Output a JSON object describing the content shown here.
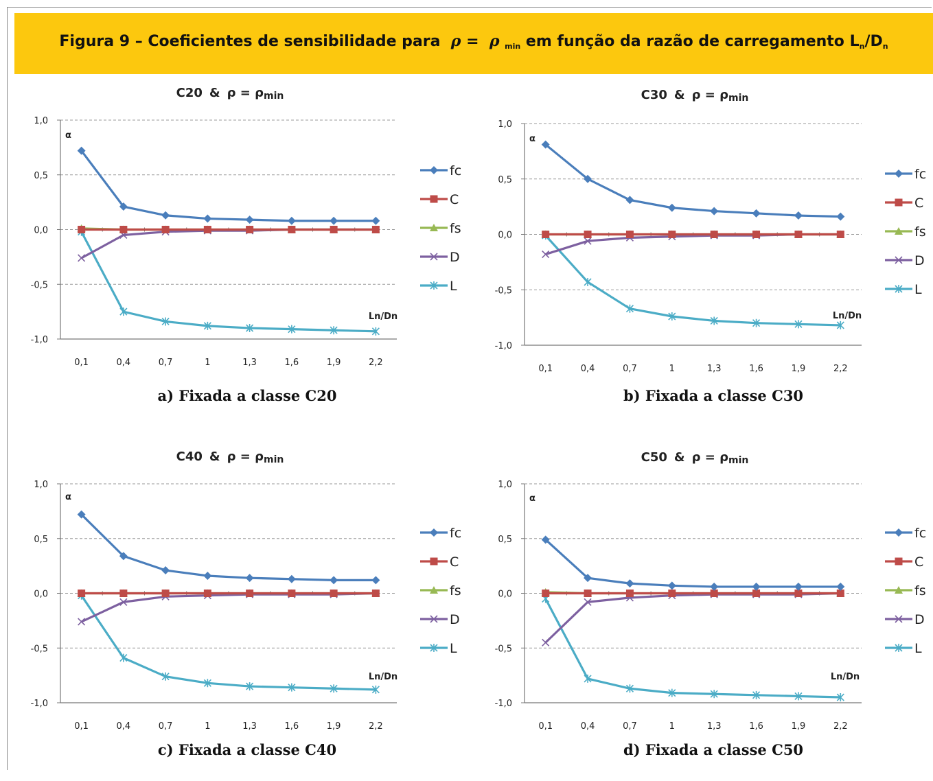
{
  "figure": {
    "title_prefix": "Figura 9 – Coeficientes de sensibilidade para",
    "rho": "ρ",
    "equals": "=",
    "rho2": "ρ",
    "min_sub": "min",
    "title_suffix": "em função da razão de carregamento L",
    "n_sub1": "n",
    "slash_d": "/D",
    "n_sub2": "n"
  },
  "chart_data": [
    {
      "type": "line",
      "title_class": "C20",
      "title_amp": "&",
      "title_rho": "ρ = ρ",
      "title_min": "min",
      "ylabel": "α",
      "xlabel": "Ln/Dn",
      "categories": [
        "0,1",
        "0,4",
        "0,7",
        "1",
        "1,3",
        "1,6",
        "1,9",
        "2,2"
      ],
      "ylim": [
        -1.0,
        1.0
      ],
      "yticks": [
        1.0,
        0.5,
        0.0,
        -0.5,
        -1.0
      ],
      "ytick_labels": [
        "1,0",
        "0,5",
        "0,0",
        "-0,5",
        "-1,0"
      ],
      "series": [
        {
          "name": "fc",
          "values": [
            0.72,
            0.21,
            0.13,
            0.1,
            0.09,
            0.08,
            0.08,
            0.08
          ]
        },
        {
          "name": "C",
          "values": [
            0.0,
            0.0,
            0.0,
            0.0,
            0.0,
            0.0,
            0.0,
            0.0
          ]
        },
        {
          "name": "fs",
          "values": [
            0.01,
            0.0,
            0.0,
            0.0,
            0.0,
            0.0,
            0.0,
            0.0
          ]
        },
        {
          "name": "D",
          "values": [
            -0.26,
            -0.05,
            -0.02,
            -0.01,
            -0.01,
            0.0,
            0.0,
            0.0
          ]
        },
        {
          "name": "L",
          "values": [
            -0.02,
            -0.75,
            -0.84,
            -0.88,
            -0.9,
            -0.91,
            -0.92,
            -0.93
          ]
        }
      ],
      "caption": "a) Fixada a classe C20"
    },
    {
      "type": "line",
      "title_class": "C30",
      "title_amp": "&",
      "title_rho": "ρ = ρ",
      "title_min": "min",
      "ylabel": "α",
      "xlabel": "Ln/Dn",
      "categories": [
        "0,1",
        "0,4",
        "0,7",
        "1",
        "1,3",
        "1,6",
        "1,9",
        "2,2"
      ],
      "ylim": [
        -1.0,
        1.0
      ],
      "yticks": [
        1.0,
        0.5,
        0.0,
        -0.5,
        -1.0
      ],
      "ytick_labels": [
        "1,0",
        "0,5",
        "0,0",
        "-0,5",
        "-1,0"
      ],
      "series": [
        {
          "name": "fc",
          "values": [
            0.81,
            0.5,
            0.31,
            0.24,
            0.21,
            0.19,
            0.17,
            0.16
          ]
        },
        {
          "name": "C",
          "values": [
            0.0,
            0.0,
            0.0,
            0.0,
            0.0,
            0.0,
            0.0,
            0.0
          ]
        },
        {
          "name": "fs",
          "values": [
            0.0,
            0.0,
            0.0,
            0.0,
            0.0,
            0.0,
            0.0,
            0.0
          ]
        },
        {
          "name": "D",
          "values": [
            -0.18,
            -0.06,
            -0.03,
            -0.02,
            -0.01,
            -0.01,
            0.0,
            0.0
          ]
        },
        {
          "name": "L",
          "values": [
            -0.01,
            -0.43,
            -0.67,
            -0.74,
            -0.78,
            -0.8,
            -0.81,
            -0.82
          ]
        }
      ],
      "caption": "b) Fixada a classe C30"
    },
    {
      "type": "line",
      "title_class": "C40",
      "title_amp": "&",
      "title_rho": "ρ = ρ",
      "title_min": "min",
      "ylabel": "α",
      "xlabel": "Ln/Dn",
      "categories": [
        "0,1",
        "0,4",
        "0,7",
        "1",
        "1,3",
        "1,6",
        "1,9",
        "2,2"
      ],
      "ylim": [
        -1.0,
        1.0
      ],
      "yticks": [
        1.0,
        0.5,
        0.0,
        -0.5,
        -1.0
      ],
      "ytick_labels": [
        "1,0",
        "0,5",
        "0,0",
        "-0,5",
        "-1,0"
      ],
      "series": [
        {
          "name": "fc",
          "values": [
            0.72,
            0.34,
            0.21,
            0.16,
            0.14,
            0.13,
            0.12,
            0.12
          ]
        },
        {
          "name": "C",
          "values": [
            0.0,
            0.0,
            0.0,
            0.0,
            0.0,
            0.0,
            0.0,
            0.0
          ]
        },
        {
          "name": "fs",
          "values": [
            0.0,
            0.0,
            0.0,
            0.0,
            0.0,
            0.0,
            0.0,
            0.0
          ]
        },
        {
          "name": "D",
          "values": [
            -0.26,
            -0.08,
            -0.03,
            -0.02,
            -0.01,
            -0.01,
            -0.01,
            0.0
          ]
        },
        {
          "name": "L",
          "values": [
            -0.02,
            -0.59,
            -0.76,
            -0.82,
            -0.85,
            -0.86,
            -0.87,
            -0.88
          ]
        }
      ],
      "caption": "c) Fixada a classe C40"
    },
    {
      "type": "line",
      "title_class": "C50",
      "title_amp": "&",
      "title_rho": "ρ = ρ",
      "title_min": "min",
      "ylabel": "α",
      "xlabel": "Ln/Dn",
      "categories": [
        "0,1",
        "0,4",
        "0,7",
        "1",
        "1,3",
        "1,6",
        "1,9",
        "2,2"
      ],
      "ylim": [
        -1.0,
        1.0
      ],
      "yticks": [
        1.0,
        0.5,
        0.0,
        -0.5,
        -1.0
      ],
      "ytick_labels": [
        "1,0",
        "0,5",
        "0,0",
        "-0,5",
        "-1,0"
      ],
      "series": [
        {
          "name": "fc",
          "values": [
            0.49,
            0.14,
            0.09,
            0.07,
            0.06,
            0.06,
            0.06,
            0.06
          ]
        },
        {
          "name": "C",
          "values": [
            0.0,
            0.0,
            0.0,
            0.0,
            0.0,
            0.0,
            0.0,
            0.0
          ]
        },
        {
          "name": "fs",
          "values": [
            0.01,
            0.0,
            0.0,
            0.0,
            0.0,
            0.0,
            0.0,
            0.0
          ]
        },
        {
          "name": "D",
          "values": [
            -0.45,
            -0.08,
            -0.04,
            -0.02,
            -0.01,
            -0.01,
            -0.01,
            0.0
          ]
        },
        {
          "name": "L",
          "values": [
            -0.05,
            -0.78,
            -0.87,
            -0.91,
            -0.92,
            -0.93,
            -0.94,
            -0.95
          ]
        }
      ],
      "caption": "d) Fixada a classe C50"
    }
  ],
  "colors": {
    "header_bg": "#fcc80e",
    "fc": "#4a7ebb",
    "C": "#be4b48",
    "fs": "#98b954",
    "D": "#7d60a0",
    "L": "#4bacc6",
    "grid": "#9a9a9a",
    "axis": "#777777"
  }
}
